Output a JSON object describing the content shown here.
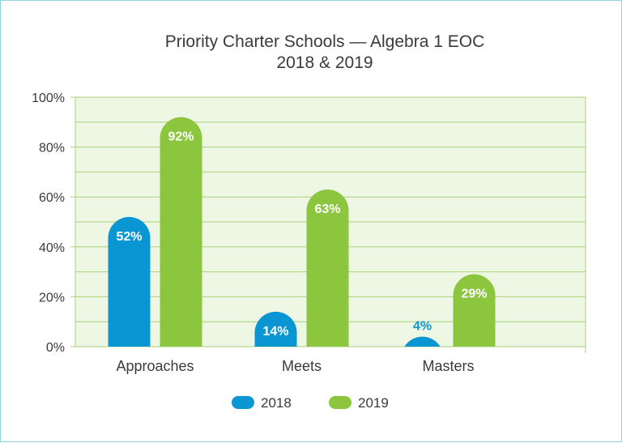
{
  "chart_data": {
    "type": "bar",
    "title": "Priority Charter Schools — Algebra 1 EOC",
    "subtitle": "2018 & 2019",
    "categories": [
      "Approaches",
      "Meets",
      "Masters"
    ],
    "series": [
      {
        "name": "2018",
        "values": [
          52,
          14,
          4
        ],
        "labels": [
          "52%",
          "14%",
          "4%"
        ],
        "color": "#0a96d2"
      },
      {
        "name": "2019",
        "values": [
          92,
          63,
          29
        ],
        "labels": [
          "92%",
          "63%",
          "29%"
        ],
        "color": "#8cc63f"
      }
    ],
    "y_ticks": [
      "0%",
      "20%",
      "40%",
      "60%",
      "80%",
      "100%"
    ],
    "ylim": [
      0,
      100
    ],
    "grid": true,
    "plot_background": "#eef6e4",
    "grid_color": "#a8d27a",
    "legend_position": "bottom-center"
  }
}
